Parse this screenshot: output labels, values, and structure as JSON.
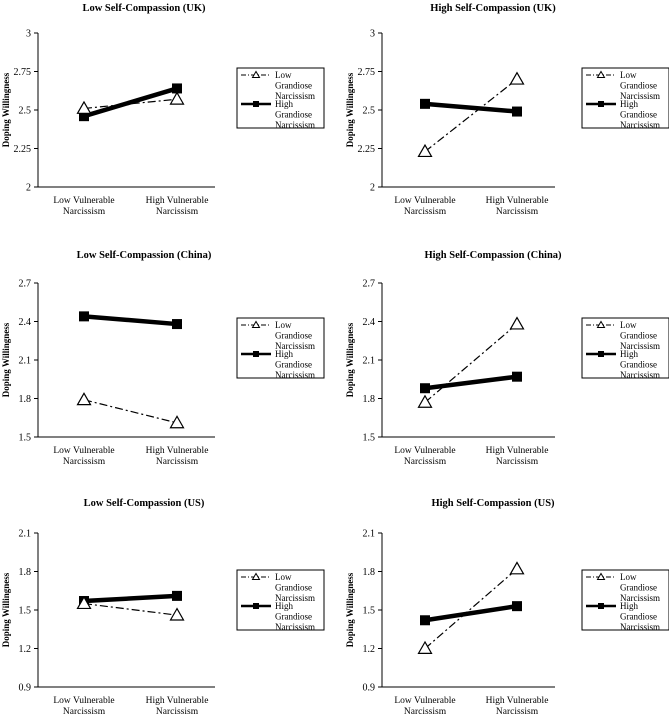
{
  "chart_data": [
    {
      "type": "line",
      "title": "Low Self-Compassion (UK)",
      "ylabel": "Doping Willingness",
      "categories": [
        "Low Vulnerable Narcissism",
        "High Vulnerable Narcissism"
      ],
      "yticks": [
        "2",
        "2.25",
        "2.5",
        "2.75",
        "3"
      ],
      "ylim": [
        2,
        3
      ],
      "series": [
        {
          "name": "Low Grandiose Narcissism",
          "values": [
            2.51,
            2.57
          ]
        },
        {
          "name": "High Grandiose Narcissism",
          "values": [
            2.46,
            2.64
          ]
        }
      ]
    },
    {
      "type": "line",
      "title": "High Self-Compassion (UK)",
      "ylabel": "Doping Willingness",
      "categories": [
        "Low Vulnerable Narcissism",
        "High Vulnerable Narcissism"
      ],
      "yticks": [
        "2",
        "2.25",
        "2.5",
        "2.75",
        "3"
      ],
      "ylim": [
        2,
        3
      ],
      "series": [
        {
          "name": "Low Grandiose Narcissism",
          "values": [
            2.23,
            2.7
          ]
        },
        {
          "name": "High Grandiose Narcissism",
          "values": [
            2.54,
            2.49
          ]
        }
      ]
    },
    {
      "type": "line",
      "title": "Low Self-Compassion (China)",
      "ylabel": "Doping Willingness",
      "categories": [
        "Low Vulnerable Narcissism",
        "High Vulnerable Narcissism"
      ],
      "yticks": [
        "1.5",
        "1.8",
        "2.1",
        "2.4",
        "2.7"
      ],
      "ylim": [
        1.5,
        2.7
      ],
      "series": [
        {
          "name": "Low Grandiose Narcissism",
          "values": [
            1.79,
            1.61
          ]
        },
        {
          "name": "High Grandiose Narcissism",
          "values": [
            2.44,
            2.38
          ]
        }
      ]
    },
    {
      "type": "line",
      "title": "High Self-Compassion (China)",
      "ylabel": "Doping Willingness",
      "categories": [
        "Low Vulnerable Narcissism",
        "High Vulnerable Narcissism"
      ],
      "yticks": [
        "1.5",
        "1.8",
        "2.1",
        "2.4",
        "2.7"
      ],
      "ylim": [
        1.5,
        2.7
      ],
      "series": [
        {
          "name": "Low Grandiose Narcissism",
          "values": [
            1.77,
            2.38
          ]
        },
        {
          "name": "High Grandiose Narcissism",
          "values": [
            1.88,
            1.97
          ]
        }
      ]
    },
    {
      "type": "line",
      "title": "Low Self-Compassion (US)",
      "ylabel": "Doping Willingness",
      "categories": [
        "Low Vulnerable Narcissism",
        "High Vulnerable Narcissism"
      ],
      "yticks": [
        "0.9",
        "1.2",
        "1.5",
        "1.8",
        "2.1"
      ],
      "ylim": [
        0.9,
        2.1
      ],
      "series": [
        {
          "name": "Low Grandiose Narcissism",
          "values": [
            1.55,
            1.46
          ]
        },
        {
          "name": "High Grandiose Narcissism",
          "values": [
            1.57,
            1.61
          ]
        }
      ]
    },
    {
      "type": "line",
      "title": "High Self-Compassion (US)",
      "ylabel": "Doping Willingness",
      "categories": [
        "Low Vulnerable Narcissism",
        "High Vulnerable Narcissism"
      ],
      "yticks": [
        "0.9",
        "1.2",
        "1.5",
        "1.8",
        "2.1"
      ],
      "ylim": [
        0.9,
        2.1
      ],
      "series": [
        {
          "name": "Low Grandiose Narcissism",
          "values": [
            1.2,
            1.82
          ]
        },
        {
          "name": "High Grandiose Narcissism",
          "values": [
            1.42,
            1.53
          ]
        }
      ]
    }
  ]
}
